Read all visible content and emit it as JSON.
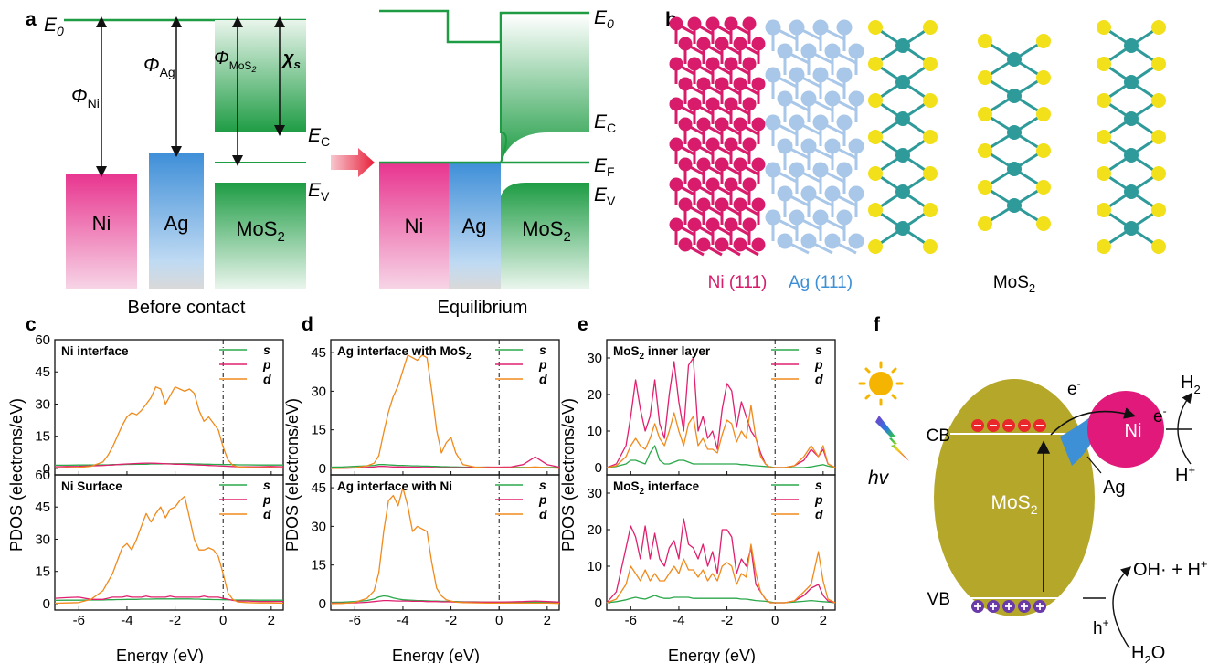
{
  "panels": {
    "a": {
      "letter": "a",
      "e0": "E",
      "e0_sub": "0",
      "phi_ni": "Φ",
      "phi_ni_sub": "Ni",
      "phi_ag": "Φ",
      "phi_ag_sub": "Ag",
      "phi_mos2": "Φ",
      "phi_mos2_sub": "MoS",
      "chi": "χ",
      "chi_sub": "s",
      "ec": "E",
      "ec_sub": "C",
      "ev": "E",
      "ev_sub": "V",
      "ef": "E",
      "ef_sub": "F",
      "ni": "Ni",
      "ag": "Ag",
      "mos2": "MoS",
      "mos2_sub": "2",
      "before": "Before contact",
      "equilibrium": "Equilibrium",
      "colors": {
        "ni": "#e8358f",
        "ag": "#3f8fd8",
        "mos2": "#1e9c44",
        "line": "#1e9c44",
        "arrow": "#e8203a"
      }
    },
    "b": {
      "letter": "b",
      "ni_label": "Ni (111)",
      "ag_label": "Ag (111)",
      "mos2_label": "MoS",
      "mos2_sub": "2",
      "colors": {
        "ni": "#d81b6a",
        "ag": "#a9c7e8",
        "mo": "#2e9a9a",
        "s": "#f2e01a"
      }
    },
    "f": {
      "letter": "f",
      "cb": "CB",
      "vb": "VB",
      "ni": "Ni",
      "ag": "Ag",
      "mos2": "MoS",
      "mos2_sub": "2",
      "hv": "hv",
      "electron": "e",
      "electron_sup": "-",
      "hole": "h",
      "hole_sup": "+",
      "h2": "H",
      "h2_sub": "2",
      "hplus": "H",
      "hplus_sup": "+",
      "oh": "OH· + H",
      "oh_sup": "+",
      "h2o": "H",
      "h2o_sub": "2",
      "h2o_tail": "O",
      "colors": {
        "mos2": "#b5a72a",
        "ni": "#e0197a",
        "ag": "#3d8fd6",
        "sun": "#f5b400",
        "electron": "#e8282a",
        "hole": "#6a3aa8"
      }
    }
  },
  "common": {
    "ylabel": "PDOS (electrons/eV)",
    "xlabel": "Energy (eV)",
    "legend": [
      "s",
      "p",
      "d"
    ],
    "series_colors": {
      "s": "#2aa84a",
      "p": "#e0206e",
      "d": "#f08a1c"
    }
  },
  "chart_data": [
    {
      "panel": "c",
      "letter": "c",
      "type": "line",
      "title": "Ni interface",
      "xlim": [
        -7,
        2.5
      ],
      "ylim": [
        -3,
        60
      ],
      "yticks": [
        0,
        15,
        30,
        45,
        60
      ],
      "xticks": [
        -6,
        -4,
        -2,
        0,
        2
      ],
      "x": [
        -7,
        -6.5,
        -6,
        -5.5,
        -5,
        -4.8,
        -4.6,
        -4.4,
        -4.2,
        -4.0,
        -3.8,
        -3.6,
        -3.4,
        -3.2,
        -3.0,
        -2.8,
        -2.6,
        -2.4,
        -2.2,
        -2.0,
        -1.8,
        -1.6,
        -1.4,
        -1.2,
        -1.0,
        -0.8,
        -0.6,
        -0.4,
        -0.2,
        0.0,
        0.2,
        0.4,
        0.6,
        1.0,
        1.5,
        2.0,
        2.5
      ],
      "series": [
        {
          "name": "s",
          "values": [
            1.5,
            1.5,
            1.6,
            1.6,
            1.7,
            1.7,
            1.8,
            1.8,
            1.8,
            1.9,
            1.9,
            2.0,
            2.0,
            2.0,
            2.1,
            2.1,
            2.1,
            2.2,
            2.2,
            2.2,
            2.2,
            2.2,
            2.2,
            2.1,
            2.1,
            2.0,
            2.0,
            1.9,
            1.9,
            1.8,
            1.8,
            1.8,
            1.7,
            1.7,
            1.6,
            1.6,
            1.6
          ]
        },
        {
          "name": "p",
          "values": [
            0.8,
            0.9,
            1.0,
            1.2,
            1.4,
            1.5,
            1.6,
            1.8,
            2.0,
            2.1,
            2.2,
            2.3,
            2.4,
            2.5,
            2.5,
            2.4,
            2.3,
            2.2,
            2.1,
            2.0,
            2.0,
            1.9,
            1.8,
            1.7,
            1.6,
            1.5,
            1.4,
            1.3,
            1.2,
            1.1,
            1.0,
            0.9,
            0.8,
            0.8,
            0.8,
            0.9,
            0.8
          ]
        },
        {
          "name": "d",
          "values": [
            0.2,
            0.3,
            0.5,
            1,
            3,
            6,
            10,
            15,
            20,
            24,
            26,
            25,
            27,
            30,
            33,
            38,
            37,
            30,
            34,
            38,
            37,
            36,
            37,
            35,
            27,
            22,
            24,
            21,
            18,
            10,
            4,
            1.5,
            0.8,
            0.5,
            0.3,
            0.3,
            0.2
          ]
        }
      ]
    },
    {
      "panel": "c2",
      "letter": "",
      "type": "line",
      "title": "Ni Surface",
      "xlim": [
        -7,
        2.5
      ],
      "ylim": [
        -3,
        60
      ],
      "yticks": [
        0,
        15,
        30,
        45,
        60
      ],
      "xticks": [
        -6,
        -4,
        -2,
        0,
        2
      ],
      "x": [
        -7,
        -6.5,
        -6,
        -5.5,
        -5,
        -4.8,
        -4.6,
        -4.4,
        -4.2,
        -4.0,
        -3.8,
        -3.6,
        -3.4,
        -3.2,
        -3.0,
        -2.8,
        -2.6,
        -2.4,
        -2.2,
        -2.0,
        -1.8,
        -1.6,
        -1.4,
        -1.2,
        -1.0,
        -0.8,
        -0.6,
        -0.4,
        -0.2,
        0.0,
        0.2,
        0.4,
        0.6,
        1.0,
        1.5,
        2.0,
        2.5
      ],
      "series": [
        {
          "name": "s",
          "values": [
            1.5,
            1.6,
            1.6,
            1.7,
            1.7,
            1.8,
            1.8,
            1.9,
            1.9,
            2.0,
            2.0,
            2.0,
            2.1,
            2.1,
            2.1,
            2.2,
            2.2,
            2.2,
            2.2,
            2.2,
            2.2,
            2.2,
            2.2,
            2.1,
            2.1,
            2.0,
            2.0,
            1.9,
            1.9,
            1.8,
            1.8,
            1.7,
            1.7,
            1.7,
            1.6,
            1.6,
            1.6
          ]
        },
        {
          "name": "p",
          "values": [
            2.5,
            2.8,
            3,
            2,
            2,
            2.5,
            3,
            3,
            3,
            3.5,
            3,
            3,
            3,
            3.5,
            3,
            3,
            3,
            3,
            3.5,
            3,
            3,
            3,
            3,
            3,
            3,
            3.5,
            3,
            3,
            3,
            2.5,
            2,
            1.5,
            1.2,
            1.2,
            1,
            1,
            1
          ]
        },
        {
          "name": "d",
          "values": [
            0.2,
            0.3,
            0.5,
            2,
            6,
            10,
            14,
            20,
            26,
            28,
            25,
            30,
            36,
            42,
            38,
            42,
            45,
            40,
            44,
            45,
            48,
            50,
            40,
            30,
            25,
            25,
            26,
            25,
            22,
            14,
            5,
            2,
            0.8,
            0.5,
            0.3,
            0.3,
            0.2
          ]
        }
      ]
    },
    {
      "panel": "d",
      "letter": "d",
      "type": "line",
      "title": "Ag interface with MoS",
      "title_sub": "2",
      "xlim": [
        -7,
        2.5
      ],
      "ylim": [
        -2.5,
        50
      ],
      "yticks": [
        0,
        15,
        30,
        45
      ],
      "xticks": [
        -6,
        -4,
        -2,
        0,
        2
      ],
      "x": [
        -7,
        -6.5,
        -6,
        -5.5,
        -5.2,
        -5.0,
        -4.8,
        -4.6,
        -4.4,
        -4.2,
        -4.0,
        -3.8,
        -3.6,
        -3.4,
        -3.2,
        -3.0,
        -2.8,
        -2.6,
        -2.4,
        -2.2,
        -2.0,
        -1.8,
        -1.5,
        -1.0,
        -0.5,
        0.0,
        0.5,
        1.0,
        1.5,
        2.0,
        2.5
      ],
      "series": [
        {
          "name": "s",
          "values": [
            0.5,
            0.6,
            0.8,
            1.0,
            1.2,
            1.5,
            1.5,
            1.4,
            1.3,
            1.2,
            1.2,
            1.1,
            1.0,
            1.0,
            0.9,
            0.9,
            0.8,
            0.8,
            0.7,
            0.7,
            0.6,
            0.6,
            0.5,
            0.5,
            0.5,
            0.4,
            0.4,
            0.4,
            0.4,
            0.4,
            0.4
          ]
        },
        {
          "name": "p",
          "values": [
            0.1,
            0.1,
            0.2,
            0.4,
            0.6,
            0.8,
            0.8,
            0.7,
            0.6,
            0.6,
            0.6,
            0.5,
            0.5,
            0.5,
            0.4,
            0.4,
            0.4,
            0.3,
            0.3,
            0.3,
            0.3,
            0.3,
            0.3,
            0.4,
            0.5,
            0.5,
            0.6,
            1.5,
            4.5,
            1.5,
            0.5
          ]
        },
        {
          "name": "d",
          "values": [
            0,
            0.1,
            0.3,
            1,
            2,
            5,
            14,
            22,
            28,
            32,
            38,
            44,
            43,
            42,
            44,
            43,
            30,
            15,
            6,
            10,
            12,
            6,
            1.5,
            0.5,
            0.3,
            0.2,
            0.2,
            0.3,
            0.6,
            0.3,
            0.1
          ]
        }
      ]
    },
    {
      "panel": "d2",
      "letter": "",
      "type": "line",
      "title": "Ag interface with Ni",
      "xlim": [
        -7,
        2.5
      ],
      "ylim": [
        -2.5,
        50
      ],
      "yticks": [
        0,
        15,
        30,
        45
      ],
      "xticks": [
        -6,
        -4,
        -2,
        0,
        2
      ],
      "x": [
        -7,
        -6.5,
        -6,
        -5.5,
        -5.2,
        -5.0,
        -4.8,
        -4.6,
        -4.4,
        -4.2,
        -4.0,
        -3.8,
        -3.6,
        -3.4,
        -3.2,
        -3.0,
        -2.8,
        -2.6,
        -2.4,
        -2.2,
        -2.0,
        -1.8,
        -1.5,
        -1.0,
        -0.5,
        0.0,
        0.5,
        1.0,
        1.5,
        2.0,
        2.5
      ],
      "series": [
        {
          "name": "s",
          "values": [
            0.5,
            0.6,
            0.8,
            1.2,
            1.8,
            2.6,
            3.0,
            2.8,
            2.2,
            1.8,
            1.5,
            1.4,
            1.3,
            1.2,
            1.2,
            1.1,
            1.0,
            1.0,
            0.9,
            0.9,
            0.8,
            0.8,
            0.7,
            0.7,
            0.6,
            0.6,
            0.6,
            0.6,
            0.6,
            0.6,
            0.6
          ]
        },
        {
          "name": "p",
          "values": [
            0.2,
            0.2,
            0.3,
            0.5,
            0.8,
            1.0,
            1.2,
            1.2,
            1.1,
            1.0,
            1.0,
            1.0,
            0.9,
            0.9,
            0.9,
            0.8,
            0.8,
            0.8,
            0.7,
            0.7,
            0.7,
            0.6,
            0.6,
            0.6,
            0.6,
            0.6,
            0.7,
            0.8,
            1.0,
            0.8,
            0.6
          ]
        },
        {
          "name": "d",
          "values": [
            0,
            0.1,
            0.5,
            2,
            5,
            12,
            28,
            40,
            42,
            38,
            45,
            38,
            28,
            30,
            29,
            28,
            16,
            6,
            3,
            1.5,
            1,
            0.6,
            0.4,
            0.3,
            0.2,
            0.2,
            0.2,
            0.2,
            0.2,
            0.2,
            0.1
          ]
        }
      ]
    },
    {
      "panel": "e",
      "letter": "e",
      "type": "line",
      "title": "MoS",
      "title_sub": "2",
      "title_tail": " inner layer",
      "xlim": [
        -7,
        2.5
      ],
      "ylim": [
        -2,
        35
      ],
      "yticks": [
        0,
        10,
        20,
        30
      ],
      "xticks": [
        -6,
        -4,
        -2,
        0,
        2
      ],
      "x": [
        -7,
        -6.6,
        -6.2,
        -6.0,
        -5.8,
        -5.6,
        -5.4,
        -5.2,
        -5.0,
        -4.8,
        -4.6,
        -4.4,
        -4.2,
        -4.0,
        -3.8,
        -3.6,
        -3.4,
        -3.2,
        -3.0,
        -2.8,
        -2.6,
        -2.4,
        -2.2,
        -2.0,
        -1.8,
        -1.6,
        -1.4,
        -1.2,
        -1.0,
        -0.8,
        -0.6,
        -0.4,
        -0.2,
        0.0,
        0.4,
        0.8,
        1.2,
        1.5,
        1.8,
        2.0,
        2.2,
        2.5
      ],
      "series": [
        {
          "name": "s",
          "values": [
            0,
            0.3,
            1,
            2,
            2,
            1.5,
            1,
            4,
            6,
            2,
            1,
            1,
            1.5,
            2,
            2,
            1.5,
            1,
            1,
            1,
            1,
            1,
            1,
            1,
            1,
            1,
            1,
            0.8,
            0.8,
            0.6,
            0.5,
            0.4,
            0.3,
            0.2,
            0,
            0,
            0,
            0,
            0.2,
            0.6,
            0.8,
            0.4,
            0
          ]
        },
        {
          "name": "p",
          "values": [
            0,
            1,
            6,
            14,
            24,
            16,
            10,
            14,
            24,
            12,
            8,
            20,
            29,
            18,
            10,
            28,
            30,
            10,
            14,
            8,
            10,
            5,
            16,
            23,
            21,
            11,
            18,
            14,
            10,
            8,
            4,
            1,
            0,
            0,
            0,
            0.5,
            2,
            5,
            3,
            5,
            1,
            0
          ]
        },
        {
          "name": "d",
          "values": [
            0,
            0.5,
            3,
            6,
            8,
            6,
            5,
            8,
            12,
            8,
            6,
            10,
            15,
            10,
            6,
            12,
            14,
            6,
            8,
            5,
            5,
            4,
            9,
            13,
            12,
            7,
            10,
            8,
            17,
            8,
            3,
            1,
            0,
            0,
            0,
            0.5,
            3,
            6,
            3,
            6,
            1,
            0
          ]
        }
      ]
    },
    {
      "panel": "e2",
      "letter": "",
      "type": "line",
      "title": "MoS",
      "title_sub": "2",
      "title_tail": " interface",
      "xlim": [
        -7,
        2.5
      ],
      "ylim": [
        -2,
        35
      ],
      "yticks": [
        0,
        10,
        20,
        30
      ],
      "xticks": [
        -6,
        -4,
        -2,
        0,
        2
      ],
      "x": [
        -7,
        -6.6,
        -6.2,
        -6.0,
        -5.8,
        -5.6,
        -5.4,
        -5.2,
        -5.0,
        -4.8,
        -4.6,
        -4.4,
        -4.2,
        -4.0,
        -3.8,
        -3.6,
        -3.4,
        -3.2,
        -3.0,
        -2.8,
        -2.6,
        -2.4,
        -2.2,
        -2.0,
        -1.8,
        -1.6,
        -1.4,
        -1.2,
        -1.0,
        -0.8,
        -0.6,
        -0.4,
        -0.2,
        0.0,
        0.4,
        0.8,
        1.2,
        1.5,
        1.8,
        2.0,
        2.2,
        2.5
      ],
      "series": [
        {
          "name": "s",
          "values": [
            0,
            0.3,
            0.8,
            1.2,
            1.5,
            1.2,
            1,
            1.5,
            2,
            1.5,
            1.2,
            1.2,
            1.5,
            1.5,
            1.5,
            1.5,
            1.2,
            1.2,
            1.2,
            1.2,
            1.2,
            1.2,
            1.2,
            1.2,
            1.2,
            1.2,
            1.0,
            1.0,
            0.8,
            0.6,
            0.5,
            0.4,
            0.2,
            0,
            0,
            0.2,
            0.4,
            0.6,
            0.4,
            0.3,
            0.2,
            0
          ]
        },
        {
          "name": "p",
          "values": [
            0,
            3,
            15,
            21,
            18,
            12,
            21,
            12,
            19,
            12,
            10,
            15,
            17,
            12,
            23,
            16,
            15,
            12,
            16,
            10,
            14,
            8,
            20,
            20,
            18,
            8,
            12,
            10,
            15,
            5,
            3,
            1,
            0,
            0,
            0,
            0.5,
            2,
            4,
            5,
            2,
            0.5,
            0
          ]
        },
        {
          "name": "d",
          "values": [
            0,
            1,
            5,
            10,
            8,
            6,
            9,
            6,
            8,
            6,
            6,
            8,
            10,
            8,
            12,
            9,
            9,
            7,
            9,
            6,
            8,
            6,
            10,
            11,
            10,
            5,
            8,
            7,
            16,
            8,
            3,
            1,
            0,
            0,
            0,
            0.5,
            3,
            5,
            14,
            6,
            1,
            0
          ]
        }
      ]
    }
  ]
}
